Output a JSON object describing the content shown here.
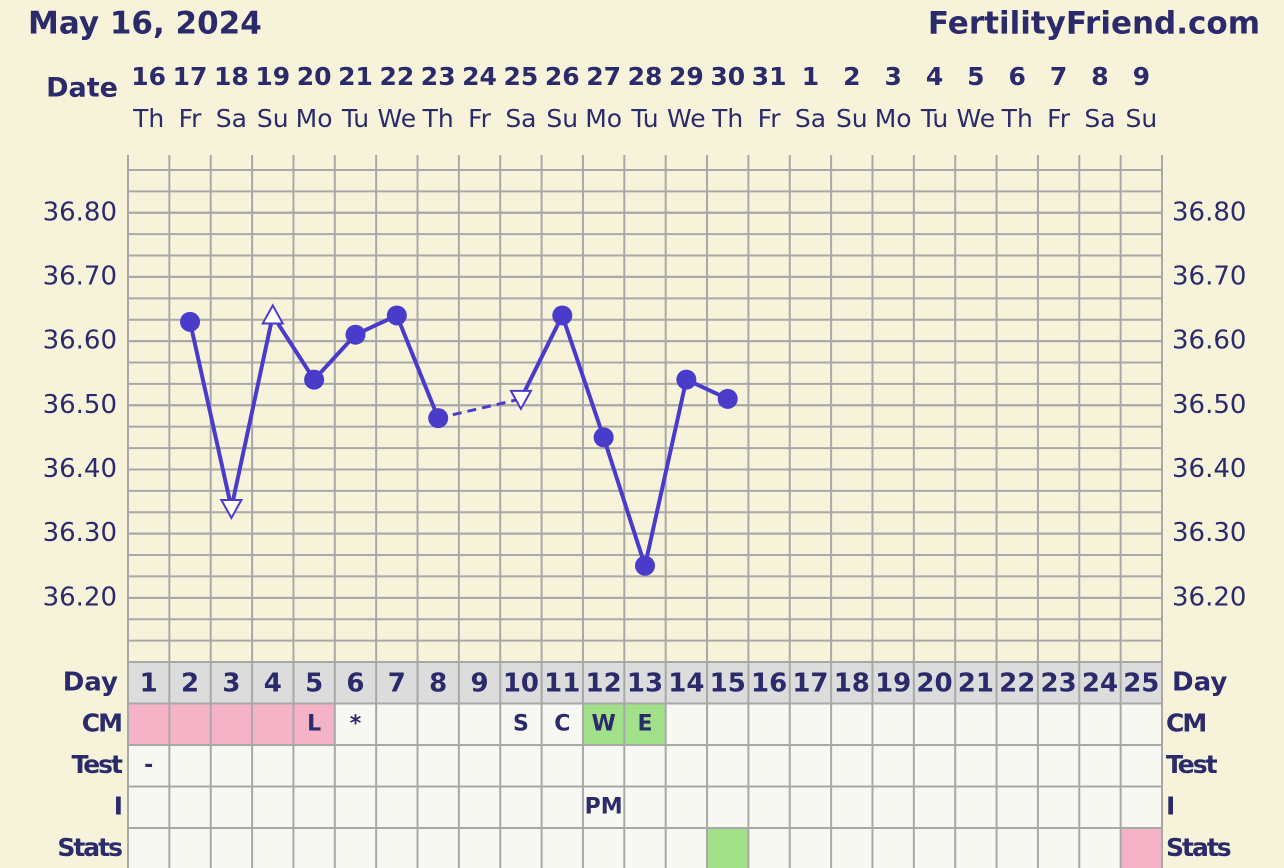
{
  "title": "May 16, 2024",
  "site": "FertilityFriend.com",
  "chart_data": {
    "type": "line",
    "date_label": "Date",
    "categories": [
      "16",
      "17",
      "18",
      "19",
      "20",
      "21",
      "22",
      "23",
      "24",
      "25",
      "26",
      "27",
      "28",
      "29",
      "30",
      "31",
      "1",
      "2",
      "3",
      "4",
      "5",
      "6",
      "7",
      "8",
      "9"
    ],
    "weekdays": [
      "Th",
      "Fr",
      "Sa",
      "Su",
      "Mo",
      "Tu",
      "We",
      "Th",
      "Fr",
      "Sa",
      "Su",
      "Mo",
      "Tu",
      "We",
      "Th",
      "Fr",
      "Sa",
      "Su",
      "Mo",
      "Tu",
      "We",
      "Th",
      "Fr",
      "Sa",
      "Su"
    ],
    "ylim": [
      36.1,
      36.89
    ],
    "yticks": [
      {
        "value": 36.2,
        "label": "36.20"
      },
      {
        "value": 36.3,
        "label": "36.30"
      },
      {
        "value": 36.4,
        "label": "36.40"
      },
      {
        "value": 36.5,
        "label": "36.50"
      },
      {
        "value": 36.6,
        "label": "36.60"
      },
      {
        "value": 36.7,
        "label": "36.70"
      },
      {
        "value": 36.8,
        "label": "36.80"
      }
    ],
    "grid": true,
    "gap_line": "dashed",
    "series": [
      {
        "color": "#4a3ccb",
        "values": [
          null,
          36.63,
          36.34,
          36.64,
          36.54,
          36.61,
          36.64,
          36.48,
          null,
          36.51,
          36.64,
          36.45,
          36.25,
          36.54,
          36.51,
          null,
          null,
          null,
          null,
          null,
          null,
          null,
          null,
          null,
          null
        ],
        "markers": [
          null,
          "dot",
          "triangle-down",
          "triangle-up",
          "dot",
          "dot",
          "dot",
          "dot",
          null,
          "triangle-down",
          "dot",
          "dot",
          "dot",
          "dot",
          "dot",
          null,
          null,
          null,
          null,
          null,
          null,
          null,
          null,
          null,
          null
        ]
      }
    ],
    "day_label": "Day",
    "cycle_days": [
      1,
      2,
      3,
      4,
      5,
      6,
      7,
      8,
      9,
      10,
      11,
      12,
      13,
      14,
      15,
      16,
      17,
      18,
      19,
      20,
      21,
      22,
      23,
      24,
      25
    ],
    "rows": [
      {
        "label": "CM",
        "cells": [
          null,
          null,
          null,
          null,
          "L",
          "*",
          null,
          null,
          null,
          "S",
          "C",
          "W",
          "E",
          null,
          null,
          null,
          null,
          null,
          null,
          null,
          null,
          null,
          null,
          null,
          null
        ],
        "fills": [
          "#f4b3c6",
          "#f4b3c6",
          "#f4b3c6",
          "#f4b3c6",
          "#f4b3c6",
          null,
          null,
          null,
          null,
          null,
          null,
          "#a3e08a",
          "#a3e08a",
          null,
          null,
          null,
          null,
          null,
          null,
          null,
          null,
          null,
          null,
          null,
          null
        ]
      },
      {
        "label": "Test",
        "cells": [
          "-",
          null,
          null,
          null,
          null,
          null,
          null,
          null,
          null,
          null,
          null,
          null,
          null,
          null,
          null,
          null,
          null,
          null,
          null,
          null,
          null,
          null,
          null,
          null,
          null
        ],
        "fills": [
          null,
          null,
          null,
          null,
          null,
          null,
          null,
          null,
          null,
          null,
          null,
          null,
          null,
          null,
          null,
          null,
          null,
          null,
          null,
          null,
          null,
          null,
          null,
          null,
          null
        ]
      },
      {
        "label": "I",
        "cells": [
          null,
          null,
          null,
          null,
          null,
          null,
          null,
          null,
          null,
          null,
          null,
          "PM",
          null,
          null,
          null,
          null,
          null,
          null,
          null,
          null,
          null,
          null,
          null,
          null,
          null
        ],
        "fills": [
          null,
          null,
          null,
          null,
          null,
          null,
          null,
          null,
          null,
          null,
          null,
          null,
          null,
          null,
          null,
          null,
          null,
          null,
          null,
          null,
          null,
          null,
          null,
          null,
          null
        ]
      },
      {
        "label": "Stats",
        "cells": [
          null,
          null,
          null,
          null,
          null,
          null,
          null,
          null,
          null,
          null,
          null,
          null,
          null,
          null,
          null,
          null,
          null,
          null,
          null,
          null,
          null,
          null,
          null,
          null,
          null
        ],
        "fills": [
          null,
          null,
          null,
          null,
          null,
          null,
          null,
          null,
          null,
          null,
          null,
          null,
          null,
          null,
          "#a3e08a",
          null,
          null,
          null,
          null,
          null,
          null,
          null,
          null,
          null,
          "#f4b3c6"
        ]
      }
    ]
  }
}
